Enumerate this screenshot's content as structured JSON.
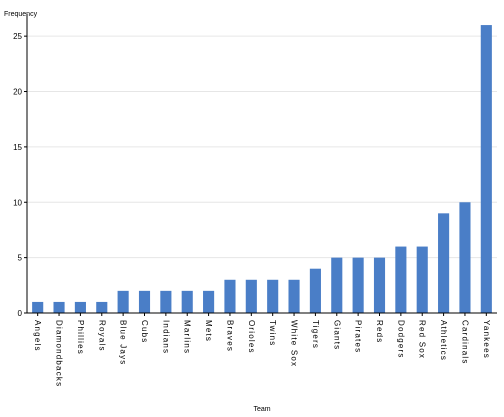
{
  "chart_data": {
    "type": "bar",
    "title": "",
    "xlabel": "Team",
    "ylabel": "Frequency",
    "ylim": [
      0,
      27
    ],
    "yticks": [
      0,
      5,
      10,
      15,
      20,
      25
    ],
    "grid": true,
    "bar_color": "#4a7ec7",
    "categories": [
      "Angels",
      "Diamondbacks",
      "Phillies",
      "Royals",
      "Blue Jays",
      "Cubs",
      "Indians",
      "Marlins",
      "Mets",
      "Braves",
      "Orioles",
      "Twins",
      "White Sox",
      "Tigers",
      "Giants",
      "Pirates",
      "Reds",
      "Dodgers",
      "Red Sox",
      "Athletics",
      "Cardinals",
      "Yankees"
    ],
    "values": [
      1,
      1,
      1,
      1,
      2,
      2,
      2,
      2,
      2,
      3,
      3,
      3,
      3,
      4,
      5,
      5,
      5,
      6,
      6,
      9,
      10,
      26
    ]
  }
}
